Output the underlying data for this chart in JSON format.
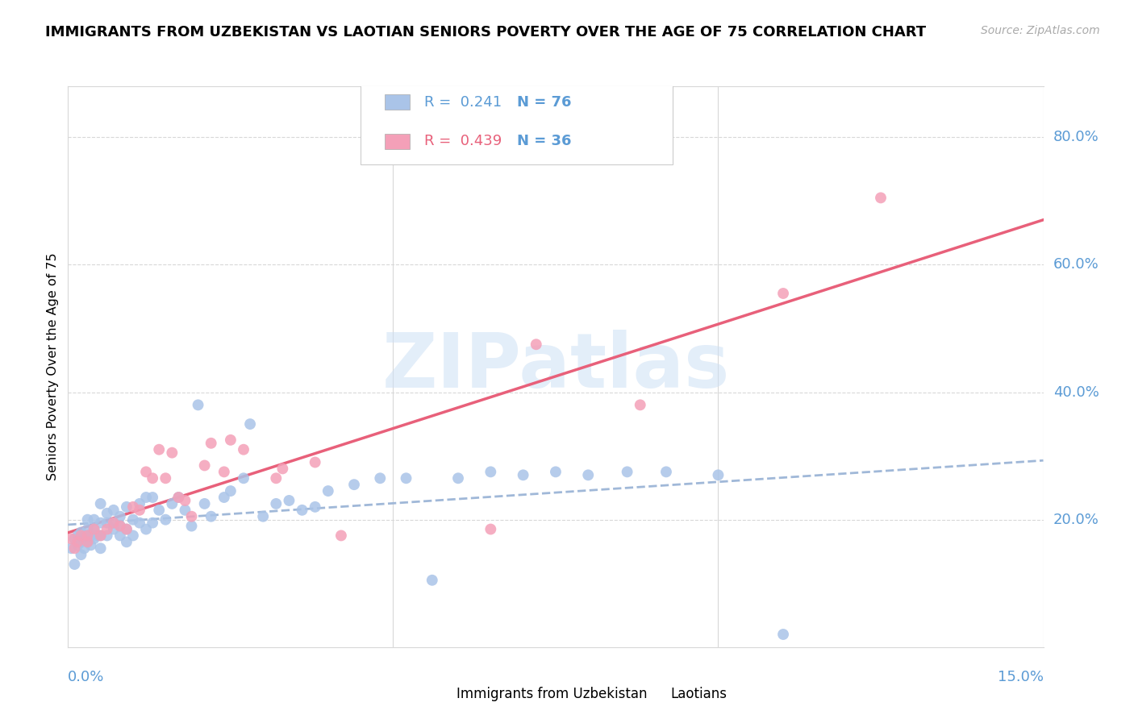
{
  "title": "IMMIGRANTS FROM UZBEKISTAN VS LAOTIAN SENIORS POVERTY OVER THE AGE OF 75 CORRELATION CHART",
  "source": "Source: ZipAtlas.com",
  "ylabel": "Seniors Poverty Over the Age of 75",
  "xlim": [
    0.0,
    0.15
  ],
  "ylim": [
    0.0,
    0.88
  ],
  "yticks": [
    0.2,
    0.4,
    0.6,
    0.8
  ],
  "ytick_labels": [
    "20.0%",
    "40.0%",
    "60.0%",
    "80.0%"
  ],
  "xtick_left_label": "0.0%",
  "xtick_right_label": "15.0%",
  "watermark_text": "ZIPatlas",
  "color_blue": "#aac4e8",
  "color_pink": "#f4a0b8",
  "color_trendline_blue_dashed": "#a0b8d8",
  "color_trendline_pink_solid": "#e8607a",
  "color_axis_text": "#5b9bd5",
  "color_grid": "#d8d8d8",
  "color_border": "#d8d8d8",
  "legend_line1_r": "R =  0.241",
  "legend_line1_n": "N = 76",
  "legend_line2_r": "R =  0.439",
  "legend_line2_n": "N = 36",
  "bottom_legend_label1": "Immigrants from Uzbekistan",
  "bottom_legend_label2": "Laotians",
  "uz_x": [
    0.0005,
    0.001,
    0.001,
    0.0015,
    0.0015,
    0.002,
    0.002,
    0.002,
    0.0025,
    0.0025,
    0.003,
    0.003,
    0.003,
    0.003,
    0.0035,
    0.0035,
    0.004,
    0.004,
    0.004,
    0.0045,
    0.005,
    0.005,
    0.005,
    0.005,
    0.006,
    0.006,
    0.006,
    0.007,
    0.007,
    0.007,
    0.008,
    0.008,
    0.008,
    0.009,
    0.009,
    0.009,
    0.01,
    0.01,
    0.011,
    0.011,
    0.012,
    0.012,
    0.013,
    0.013,
    0.014,
    0.015,
    0.016,
    0.017,
    0.018,
    0.019,
    0.02,
    0.021,
    0.022,
    0.024,
    0.025,
    0.027,
    0.028,
    0.03,
    0.032,
    0.034,
    0.036,
    0.038,
    0.04,
    0.044,
    0.048,
    0.052,
    0.056,
    0.06,
    0.065,
    0.07,
    0.075,
    0.08,
    0.086,
    0.092,
    0.1,
    0.11
  ],
  "uz_y": [
    0.155,
    0.13,
    0.17,
    0.175,
    0.16,
    0.145,
    0.165,
    0.18,
    0.155,
    0.175,
    0.165,
    0.175,
    0.185,
    0.2,
    0.16,
    0.175,
    0.17,
    0.185,
    0.2,
    0.175,
    0.155,
    0.175,
    0.195,
    0.225,
    0.175,
    0.195,
    0.21,
    0.185,
    0.195,
    0.215,
    0.175,
    0.19,
    0.205,
    0.165,
    0.185,
    0.22,
    0.175,
    0.2,
    0.195,
    0.225,
    0.185,
    0.235,
    0.195,
    0.235,
    0.215,
    0.2,
    0.225,
    0.235,
    0.215,
    0.19,
    0.38,
    0.225,
    0.205,
    0.235,
    0.245,
    0.265,
    0.35,
    0.205,
    0.225,
    0.23,
    0.215,
    0.22,
    0.245,
    0.255,
    0.265,
    0.265,
    0.105,
    0.265,
    0.275,
    0.27,
    0.275,
    0.27,
    0.275,
    0.275,
    0.27,
    0.02
  ],
  "la_x": [
    0.0005,
    0.001,
    0.0015,
    0.002,
    0.003,
    0.003,
    0.004,
    0.005,
    0.006,
    0.007,
    0.008,
    0.009,
    0.01,
    0.011,
    0.012,
    0.013,
    0.014,
    0.015,
    0.016,
    0.017,
    0.018,
    0.019,
    0.021,
    0.022,
    0.024,
    0.025,
    0.027,
    0.032,
    0.033,
    0.038,
    0.042,
    0.065,
    0.072,
    0.088,
    0.11,
    0.125
  ],
  "la_y": [
    0.17,
    0.155,
    0.165,
    0.175,
    0.165,
    0.175,
    0.185,
    0.175,
    0.185,
    0.195,
    0.19,
    0.185,
    0.22,
    0.215,
    0.275,
    0.265,
    0.31,
    0.265,
    0.305,
    0.235,
    0.23,
    0.205,
    0.285,
    0.32,
    0.275,
    0.325,
    0.31,
    0.265,
    0.28,
    0.29,
    0.175,
    0.185,
    0.475,
    0.38,
    0.555,
    0.705
  ]
}
